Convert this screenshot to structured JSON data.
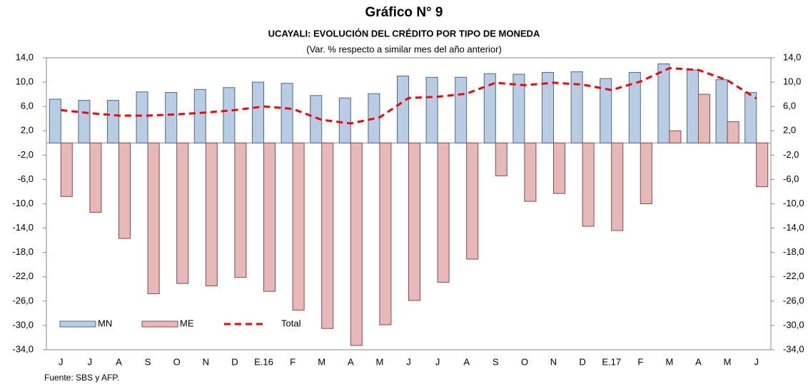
{
  "chart_data": {
    "type": "bar_line",
    "title": "Gráfico N° 9",
    "subtitle": "UCAYALI: EVOLUCIÓN DEL CRÉDITO POR TIPO DE MONEDA",
    "note": "(Var. % respecto a similar mes del año anterior)",
    "source": "Fuente: SBS y AFP.",
    "categories": [
      "J",
      "J",
      "A",
      "S",
      "O",
      "N",
      "D",
      "E.16",
      "F",
      "M",
      "A",
      "M",
      "J",
      "J",
      "A",
      "S",
      "O",
      "N",
      "D",
      "E.17",
      "F",
      "M",
      "A",
      "M",
      "J"
    ],
    "series": [
      {
        "name": "MN",
        "type": "bar",
        "color": "#b8cce4",
        "stroke": "#4a6a96",
        "values": [
          7.2,
          7.0,
          7.0,
          8.4,
          8.3,
          8.8,
          9.1,
          10.0,
          9.8,
          7.8,
          7.4,
          8.1,
          11.0,
          10.8,
          10.8,
          11.4,
          11.3,
          11.6,
          11.7,
          10.6,
          11.6,
          13.0,
          12.0,
          10.4,
          8.3
        ]
      },
      {
        "name": "ME",
        "type": "bar",
        "color": "#e6b9b8",
        "stroke": "#8c4a48",
        "values": [
          -8.8,
          -11.4,
          -15.7,
          -24.8,
          -23.1,
          -23.5,
          -22.1,
          -24.4,
          -27.5,
          -30.5,
          -33.3,
          -29.9,
          -25.9,
          -22.9,
          -19.1,
          -5.4,
          -9.6,
          -8.3,
          -13.7,
          -14.4,
          -10.0,
          2.0,
          8.0,
          3.5,
          -7.2
        ]
      },
      {
        "name": "Total",
        "type": "line",
        "color": "#ff0000",
        "values": [
          5.4,
          4.9,
          4.5,
          4.5,
          4.7,
          5.0,
          5.4,
          6.0,
          5.6,
          3.8,
          3.2,
          4.2,
          7.4,
          7.6,
          8.1,
          9.9,
          9.5,
          9.9,
          9.6,
          8.7,
          10.1,
          12.3,
          12.0,
          10.3,
          7.3
        ]
      }
    ],
    "ylim": [
      -34,
      14
    ],
    "yticks": [
      {
        "value": 14,
        "label": "14,0"
      },
      {
        "value": 10,
        "label": "10,0"
      },
      {
        "value": 6,
        "label": "6,0"
      },
      {
        "value": 2,
        "label": "2,0"
      },
      {
        "value": -2,
        "label": "-2,0"
      },
      {
        "value": -6,
        "label": "-6,0"
      },
      {
        "value": -10,
        "label": "-10,0"
      },
      {
        "value": -14,
        "label": "-14,0"
      },
      {
        "value": -18,
        "label": "-18,0"
      },
      {
        "value": -22,
        "label": "-22,0"
      },
      {
        "value": -26,
        "label": "-26,0"
      },
      {
        "value": -30,
        "label": "-30,0"
      },
      {
        "value": -34,
        "label": "-34,0"
      }
    ],
    "y2lim": [
      -34,
      14
    ],
    "y2ticks": [
      {
        "value": 14,
        "label": "14,0"
      },
      {
        "value": 10,
        "label": "10,0"
      },
      {
        "value": 6,
        "label": "6,0"
      },
      {
        "value": 2,
        "label": "2,0"
      },
      {
        "value": -2,
        "label": "-2,0"
      },
      {
        "value": -6,
        "label": "-6,0"
      },
      {
        "value": -10,
        "label": "-10,0"
      },
      {
        "value": -14,
        "label": "-14,0"
      },
      {
        "value": -18,
        "label": "-18,0"
      },
      {
        "value": -22,
        "label": "-22,0"
      },
      {
        "value": -26,
        "label": "-26,0"
      },
      {
        "value": -30,
        "label": "-30,0"
      },
      {
        "value": -34,
        "label": "-34,0"
      }
    ],
    "legend": "lower left",
    "grid": false
  }
}
